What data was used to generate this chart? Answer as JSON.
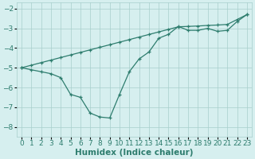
{
  "line1_x": [
    0,
    1,
    2,
    3,
    4,
    5,
    6,
    7,
    8,
    9,
    10,
    11,
    12,
    13,
    14,
    15,
    16,
    17,
    18,
    19,
    20,
    21,
    22,
    23
  ],
  "line1_y": [
    -5.0,
    -4.87,
    -4.74,
    -4.61,
    -4.48,
    -4.35,
    -4.22,
    -4.09,
    -3.96,
    -3.83,
    -3.7,
    -3.57,
    -3.44,
    -3.31,
    -3.18,
    -3.05,
    -2.92,
    -2.9,
    -2.88,
    -2.85,
    -2.83,
    -2.8,
    -2.55,
    -2.3
  ],
  "line2_x": [
    0,
    1,
    2,
    3,
    4,
    5,
    6,
    7,
    8,
    9,
    10,
    11,
    12,
    13,
    14,
    15,
    16,
    17,
    18,
    19,
    20,
    21,
    22,
    23
  ],
  "line2_y": [
    -5.0,
    -5.1,
    -5.2,
    -5.3,
    -5.5,
    -6.35,
    -6.5,
    -7.3,
    -7.5,
    -7.55,
    -6.35,
    -5.2,
    -4.55,
    -4.2,
    -3.5,
    -3.3,
    -2.9,
    -3.1,
    -3.1,
    -3.0,
    -3.15,
    -3.1,
    -2.65,
    -2.3
  ],
  "line_color": "#2e7d6e",
  "bg_color": "#d6efef",
  "grid_color": "#a8cecc",
  "xlabel": "Humidex (Indice chaleur)",
  "xlim": [
    -0.5,
    23.5
  ],
  "ylim": [
    -8.5,
    -1.7
  ],
  "yticks": [
    -8,
    -7,
    -6,
    -5,
    -4,
    -3,
    -2
  ],
  "xticks": [
    0,
    1,
    2,
    3,
    4,
    5,
    6,
    7,
    8,
    9,
    10,
    11,
    12,
    13,
    14,
    15,
    16,
    17,
    18,
    19,
    20,
    21,
    22,
    23
  ],
  "xlabel_fontsize": 7.5,
  "tick_fontsize": 6.5
}
